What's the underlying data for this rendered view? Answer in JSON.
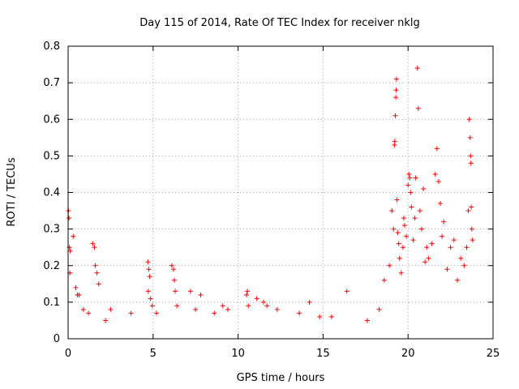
{
  "chart_data": {
    "type": "scatter",
    "title": "Day 115 of 2014, Rate Of TEC Index for receiver nklg",
    "xlabel": "GPS time / hours",
    "ylabel": "ROTI / TECUs",
    "xlim": [
      0,
      25
    ],
    "ylim": [
      0,
      0.8
    ],
    "x_ticks": [
      "0",
      "5",
      "10",
      "15",
      "20",
      "25"
    ],
    "y_ticks": [
      "0",
      "0.1",
      "0.2",
      "0.3",
      "0.4",
      "0.5",
      "0.6",
      "0.7",
      "0.8"
    ],
    "grid": true,
    "marker": "+",
    "series": [
      {
        "color": "#ff0000",
        "points": [
          [
            0.02,
            0.35
          ],
          [
            0.05,
            0.33
          ],
          [
            0.08,
            0.25
          ],
          [
            0.12,
            0.24
          ],
          [
            0.1,
            0.18
          ],
          [
            0.3,
            0.28
          ],
          [
            0.45,
            0.14
          ],
          [
            0.55,
            0.12
          ],
          [
            0.65,
            0.12
          ],
          [
            0.9,
            0.08
          ],
          [
            1.2,
            0.07
          ],
          [
            1.45,
            0.26
          ],
          [
            1.55,
            0.25
          ],
          [
            1.6,
            0.2
          ],
          [
            1.7,
            0.18
          ],
          [
            1.8,
            0.15
          ],
          [
            2.2,
            0.05
          ],
          [
            2.5,
            0.08
          ],
          [
            3.7,
            0.07
          ],
          [
            4.7,
            0.21
          ],
          [
            4.75,
            0.19
          ],
          [
            4.8,
            0.17
          ],
          [
            4.72,
            0.13
          ],
          [
            4.85,
            0.11
          ],
          [
            4.95,
            0.09
          ],
          [
            5.2,
            0.07
          ],
          [
            6.1,
            0.2
          ],
          [
            6.2,
            0.19
          ],
          [
            6.25,
            0.16
          ],
          [
            6.3,
            0.13
          ],
          [
            6.4,
            0.09
          ],
          [
            7.2,
            0.13
          ],
          [
            7.5,
            0.08
          ],
          [
            7.8,
            0.12
          ],
          [
            8.6,
            0.07
          ],
          [
            9.1,
            0.09
          ],
          [
            9.4,
            0.08
          ],
          [
            10.5,
            0.12
          ],
          [
            10.55,
            0.13
          ],
          [
            10.6,
            0.09
          ],
          [
            11.1,
            0.11
          ],
          [
            11.5,
            0.1
          ],
          [
            11.7,
            0.09
          ],
          [
            12.3,
            0.08
          ],
          [
            13.6,
            0.07
          ],
          [
            14.2,
            0.1
          ],
          [
            14.8,
            0.06
          ],
          [
            15.5,
            0.06
          ],
          [
            16.4,
            0.13
          ],
          [
            17.6,
            0.05
          ],
          [
            18.3,
            0.08
          ],
          [
            18.6,
            0.16
          ],
          [
            18.9,
            0.2
          ],
          [
            19.05,
            0.35
          ],
          [
            19.15,
            0.3
          ],
          [
            19.2,
            0.53
          ],
          [
            19.22,
            0.54
          ],
          [
            19.25,
            0.61
          ],
          [
            19.28,
            0.66
          ],
          [
            19.3,
            0.68
          ],
          [
            19.32,
            0.71
          ],
          [
            19.35,
            0.38
          ],
          [
            19.4,
            0.29
          ],
          [
            19.45,
            0.26
          ],
          [
            19.5,
            0.22
          ],
          [
            19.6,
            0.18
          ],
          [
            19.7,
            0.25
          ],
          [
            19.75,
            0.33
          ],
          [
            19.8,
            0.31
          ],
          [
            19.9,
            0.28
          ],
          [
            20.0,
            0.42
          ],
          [
            20.05,
            0.45
          ],
          [
            20.1,
            0.44
          ],
          [
            20.15,
            0.4
          ],
          [
            20.2,
            0.36
          ],
          [
            20.3,
            0.27
          ],
          [
            20.4,
            0.33
          ],
          [
            20.45,
            0.44
          ],
          [
            20.55,
            0.74
          ],
          [
            20.6,
            0.63
          ],
          [
            20.7,
            0.35
          ],
          [
            20.8,
            0.3
          ],
          [
            20.9,
            0.41
          ],
          [
            21.0,
            0.21
          ],
          [
            21.1,
            0.25
          ],
          [
            21.2,
            0.22
          ],
          [
            21.4,
            0.26
          ],
          [
            21.6,
            0.45
          ],
          [
            21.7,
            0.52
          ],
          [
            21.8,
            0.43
          ],
          [
            21.9,
            0.37
          ],
          [
            22.0,
            0.28
          ],
          [
            22.1,
            0.32
          ],
          [
            22.3,
            0.19
          ],
          [
            22.5,
            0.25
          ],
          [
            22.7,
            0.27
          ],
          [
            22.9,
            0.16
          ],
          [
            23.1,
            0.22
          ],
          [
            23.3,
            0.2
          ],
          [
            23.45,
            0.25
          ],
          [
            23.55,
            0.35
          ],
          [
            23.6,
            0.6
          ],
          [
            23.65,
            0.55
          ],
          [
            23.68,
            0.5
          ],
          [
            23.7,
            0.48
          ],
          [
            23.72,
            0.36
          ],
          [
            23.75,
            0.3
          ],
          [
            23.8,
            0.27
          ]
        ]
      }
    ]
  }
}
